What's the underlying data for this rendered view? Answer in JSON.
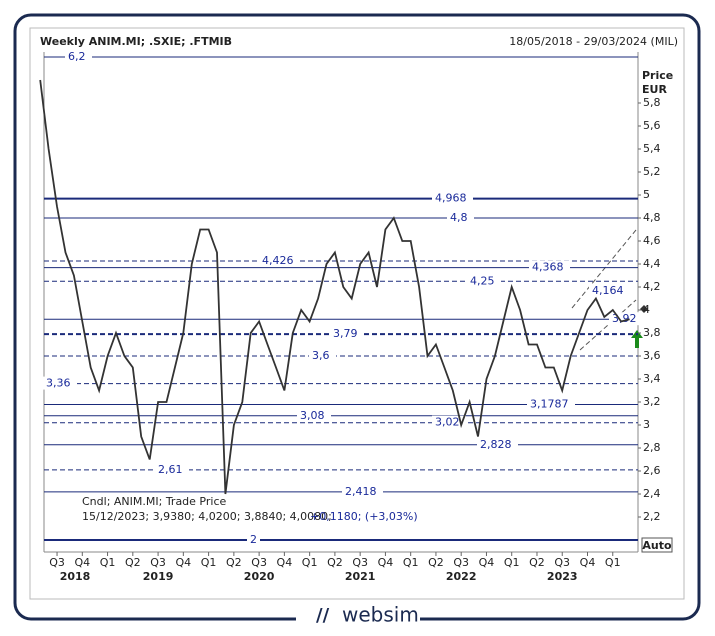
{
  "chart_data": {
    "type": "line",
    "title": "Weekly ANIM.MI; .SXIE; .FTMIB",
    "subtitle": "18/05/2018 - 29/03/2024 (MIL)",
    "ylabel": "Price",
    "yunit": "EUR",
    "ylim": [
      2,
      6.2
    ],
    "yticks": [
      {
        "value": 2.2,
        "label": "2,2"
      },
      {
        "value": 2.4,
        "label": "2,4"
      },
      {
        "value": 2.6,
        "label": "2,6"
      },
      {
        "value": 2.8,
        "label": "2,8"
      },
      3,
      {
        "value": 3.2,
        "label": "3,2"
      },
      {
        "value": 3.4,
        "label": "3,4"
      },
      {
        "value": 3.6,
        "label": "3,6"
      },
      {
        "value": 3.8,
        "label": "3,8"
      },
      4,
      {
        "value": 4.2,
        "label": "4,2"
      },
      {
        "value": 4.4,
        "label": "4,4"
      },
      {
        "value": 4.6,
        "label": "4,6"
      },
      {
        "value": 4.8,
        "label": "4,8"
      },
      5,
      {
        "value": 5.2,
        "label": "5,2"
      },
      {
        "value": 5.4,
        "label": "5,4"
      },
      {
        "value": 5.6,
        "label": "5,6"
      },
      {
        "value": 5.8,
        "label": "5,8"
      }
    ],
    "quarters": [
      "Q3",
      "Q4",
      "Q1",
      "Q2",
      "Q3",
      "Q4",
      "Q1",
      "Q2",
      "Q3",
      "Q4",
      "Q1",
      "Q2",
      "Q3",
      "Q4",
      "Q1",
      "Q2",
      "Q3",
      "Q4",
      "Q1",
      "Q2",
      "Q3",
      "Q4",
      "Q1"
    ],
    "years": [
      "2018",
      "2019",
      "2020",
      "2021",
      "2022",
      "2023"
    ],
    "series": [
      {
        "name": "ANIM.MI",
        "color": "#333333",
        "values": [
          6.0,
          5.4,
          4.9,
          4.5,
          4.3,
          3.9,
          3.5,
          3.3,
          3.6,
          3.8,
          3.6,
          3.5,
          2.9,
          2.7,
          3.2,
          3.2,
          3.5,
          3.8,
          4.4,
          4.7,
          4.7,
          4.5,
          2.4,
          3.0,
          3.2,
          3.8,
          3.9,
          3.7,
          3.5,
          3.3,
          3.8,
          4.0,
          3.9,
          4.1,
          4.4,
          4.5,
          4.2,
          4.1,
          4.4,
          4.5,
          4.2,
          4.7,
          4.8,
          4.6,
          4.6,
          4.2,
          3.6,
          3.7,
          3.5,
          3.3,
          3.0,
          3.2,
          2.9,
          3.4,
          3.6,
          3.9,
          4.2,
          4.0,
          3.7,
          3.7,
          3.5,
          3.5,
          3.3,
          3.6,
          3.8,
          4.0,
          4.1,
          3.94,
          4.0,
          3.9,
          3.92
        ]
      }
    ],
    "levels": [
      {
        "value": 6.2,
        "label": "6,2",
        "style": "solid"
      },
      {
        "value": 4.968,
        "label": "4,968",
        "style": "thick"
      },
      {
        "value": 4.8,
        "label": "4,8",
        "style": "solid"
      },
      {
        "value": 4.426,
        "label": "4,426",
        "style": "dashed"
      },
      {
        "value": 4.368,
        "label": "4,368",
        "style": "solid"
      },
      {
        "value": 4.25,
        "label": "4,25",
        "style": "dashed"
      },
      {
        "value": 4.164,
        "label": "4,164",
        "style": "none"
      },
      {
        "value": 3.92,
        "label": "3,92",
        "style": "solid"
      },
      {
        "value": 3.79,
        "label": "3,79",
        "style": "thickdash"
      },
      {
        "value": 3.6,
        "label": "3,6",
        "style": "dashed"
      },
      {
        "value": 3.36,
        "label": "3,36",
        "style": "dashed"
      },
      {
        "value": 3.1787,
        "label": "3,1787",
        "style": "solid"
      },
      {
        "value": 3.08,
        "label": "3,08",
        "style": "solid"
      },
      {
        "value": 3.02,
        "label": "3,02",
        "style": "dashed"
      },
      {
        "value": 2.828,
        "label": "2,828",
        "style": "solid"
      },
      {
        "value": 2.61,
        "label": "2,61",
        "style": "dashed"
      },
      {
        "value": 2.418,
        "label": "2,418",
        "style": "solid"
      },
      {
        "value": 2,
        "label": "2",
        "style": "thick"
      }
    ],
    "info": [
      "Cndl; ANIM.MI; Trade Price",
      "15/12/2023; 3,9380; 4,0200; 3,8840; 4,0080;",
      "+0,1180; (+3,03%)"
    ],
    "button": "Auto"
  },
  "logo": "websim"
}
